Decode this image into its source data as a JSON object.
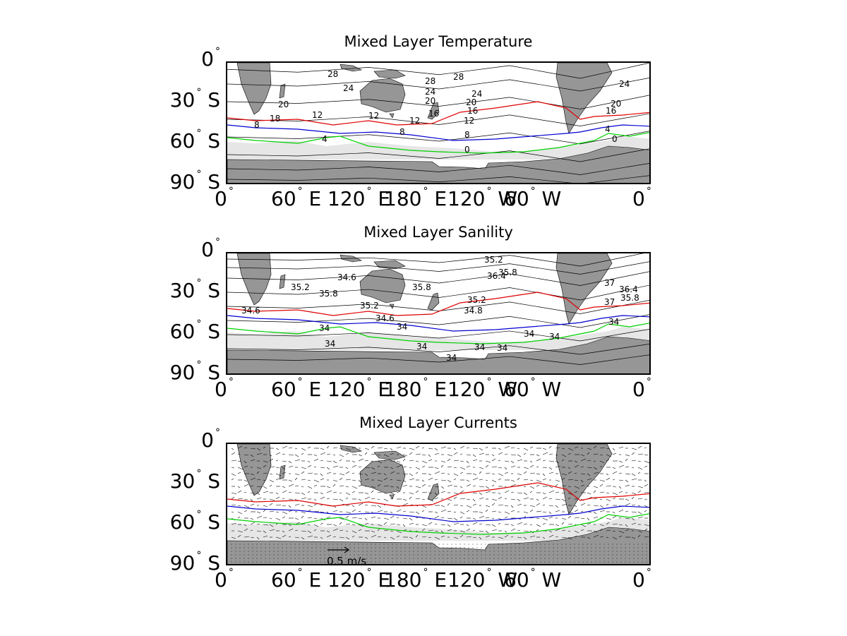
{
  "panels": [
    {
      "title": "Mixed Layer Temperature",
      "contour_labels": [
        "28",
        "28",
        "28",
        "24",
        "24",
        "24",
        "24",
        "20",
        "20",
        "20",
        "20",
        "18",
        "16",
        "16",
        "16",
        "12",
        "12",
        "12",
        "12",
        "8",
        "8",
        "8",
        "4",
        "4",
        "0",
        "0",
        "0"
      ]
    },
    {
      "title": "Mixed Layer Sanility",
      "contour_labels": [
        "35.2",
        "35.8",
        "36.4",
        "37",
        "34.6",
        "35.2",
        "35.8",
        "35.8",
        "37",
        "36.4",
        "35.8",
        "35.2",
        "34.8",
        "34.6",
        "34.6",
        "35.2",
        "34",
        "34",
        "34",
        "34",
        "34",
        "34",
        "34",
        "34",
        "34",
        "34"
      ]
    },
    {
      "title": "Mixed Layer Currents",
      "scale_label": "0.5 m/s"
    }
  ],
  "lat_ticks": [
    "0",
    "30",
    "60",
    "90"
  ],
  "lat_suffix": [
    "",
    "S",
    "S",
    "S"
  ],
  "lon_ticks": [
    "0",
    "60",
    "120",
    "180",
    "120",
    "60",
    "0"
  ],
  "lon_suffix": [
    "",
    "E",
    "E",
    "E",
    "W",
    "W",
    ""
  ],
  "colors": {
    "land": "#969696",
    "ice": "#e6e6e6",
    "red_front": "#e00000",
    "blue_front": "#0000d0",
    "green_front": "#00d000",
    "contour": "#000000"
  }
}
